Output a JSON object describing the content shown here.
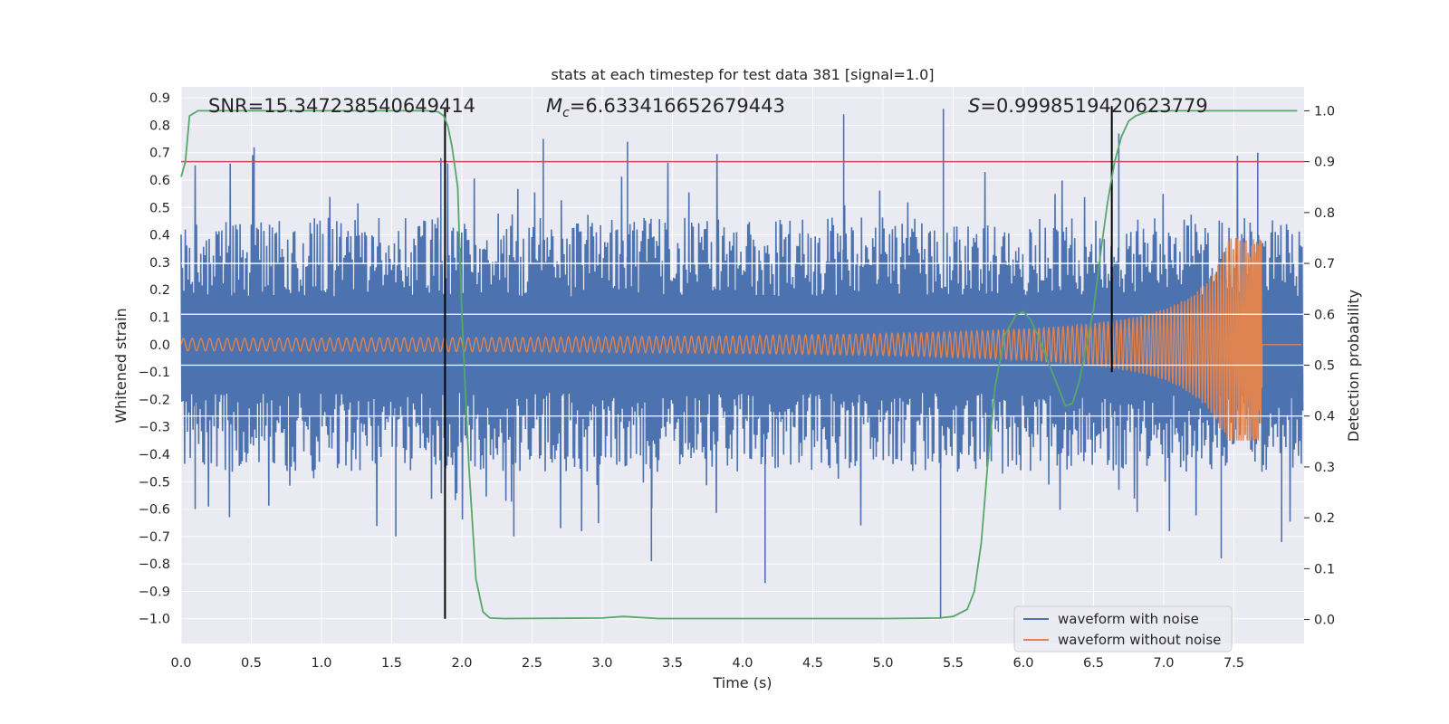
{
  "chart_data": {
    "type": "line",
    "title": "stats at each timestep for test data 381 [signal=1.0]",
    "xlabel": "Time (s)",
    "ylabel": "Whitened strain",
    "y2label": "Detection probability",
    "xlim": [
      0.0,
      8.0
    ],
    "ylim": [
      -1.09,
      0.94
    ],
    "y2lim": [
      -0.047,
      1.047
    ],
    "grid": true,
    "legend_position": "lower-right",
    "x_ticks": [
      "0.0",
      "0.5",
      "1.0",
      "1.5",
      "2.0",
      "2.5",
      "3.0",
      "3.5",
      "4.0",
      "4.5",
      "5.0",
      "5.5",
      "6.0",
      "6.5",
      "7.0",
      "7.5"
    ],
    "y_ticks": [
      "0.9",
      "0.8",
      "0.7",
      "0.6",
      "0.5",
      "0.4",
      "0.3",
      "0.2",
      "0.1",
      "0.0",
      "−0.1",
      "−0.2",
      "−0.3",
      "−0.4",
      "−0.5",
      "−0.6",
      "−0.7",
      "−0.8",
      "−0.9",
      "−1.0"
    ],
    "y2_ticks": [
      "1.0",
      "0.9",
      "0.8",
      "0.7",
      "0.6",
      "0.5",
      "0.4",
      "0.3",
      "0.2",
      "0.1",
      "0.0"
    ],
    "annotations": {
      "snr": "SNR=15.347238540649414",
      "mc_symbol": "M",
      "mc_sub": "c",
      "mc_value": "=6.633416652679443",
      "s_symbol": "S",
      "s_value": "=0.9998519420623779"
    },
    "threshold": {
      "y2": 0.9,
      "color": "#c44e52"
    },
    "white_hlines_y2": [
      0.7,
      0.6,
      0.5,
      0.4
    ],
    "vlines": [
      {
        "x": 1.88,
        "y_top": 0.86,
        "y_bottom": -1.0
      },
      {
        "x": 6.63,
        "y_top": 0.87,
        "y_bottom": -0.1
      }
    ],
    "series": [
      {
        "name": "waveform with noise",
        "color": "#4c72b0",
        "noise_amplitude": 0.32,
        "spikes": [
          [
            0.52,
            0.72
          ],
          [
            1.85,
            0.68
          ],
          [
            2.58,
            0.75
          ],
          [
            3.18,
            0.74
          ],
          [
            4.72,
            0.84
          ],
          [
            5.43,
            0.86
          ],
          [
            6.68,
            0.77
          ],
          [
            7.67,
            0.7
          ],
          [
            0.1,
            -0.6
          ],
          [
            1.53,
            -0.7
          ],
          [
            2.37,
            -0.7
          ],
          [
            3.35,
            -0.79
          ],
          [
            4.16,
            -0.87
          ],
          [
            5.41,
            -1.0
          ],
          [
            7.41,
            -0.78
          ],
          [
            7.84,
            -0.72
          ]
        ]
      },
      {
        "name": "waveform without noise",
        "color": "#dd8452",
        "chirp": {
          "t_end": 7.7,
          "amp_start": 0.015,
          "amp_end": 0.39,
          "min_amp": -0.35
        }
      },
      {
        "name": "detection probability",
        "color": "#55a868",
        "axis": "y2",
        "x": [
          0.0,
          0.03,
          0.06,
          0.12,
          0.3,
          1.0,
          1.5,
          1.75,
          1.83,
          1.87,
          1.9,
          1.93,
          1.97,
          2.0,
          2.05,
          2.1,
          2.15,
          2.2,
          2.3,
          3.0,
          3.15,
          3.4,
          4.0,
          5.0,
          5.4,
          5.5,
          5.6,
          5.65,
          5.7,
          5.75,
          5.8,
          5.87,
          5.95,
          6.0,
          6.05,
          6.1,
          6.2,
          6.3,
          6.35,
          6.4,
          6.5,
          6.55,
          6.6,
          6.65,
          6.7,
          6.75,
          6.8,
          6.85,
          6.9,
          7.0,
          7.5,
          7.95
        ],
        "y": [
          0.87,
          0.9,
          0.99,
          1.0,
          1.0,
          1.0,
          1.0,
          1.0,
          0.998,
          0.99,
          0.97,
          0.93,
          0.85,
          0.6,
          0.3,
          0.08,
          0.015,
          0.003,
          0.002,
          0.003,
          0.006,
          0.002,
          0.002,
          0.002,
          0.003,
          0.006,
          0.02,
          0.055,
          0.15,
          0.32,
          0.46,
          0.56,
          0.6,
          0.605,
          0.59,
          0.56,
          0.49,
          0.42,
          0.425,
          0.47,
          0.61,
          0.72,
          0.82,
          0.9,
          0.95,
          0.98,
          0.99,
          0.995,
          1.0,
          1.0,
          1.0,
          1.0
        ]
      }
    ]
  }
}
